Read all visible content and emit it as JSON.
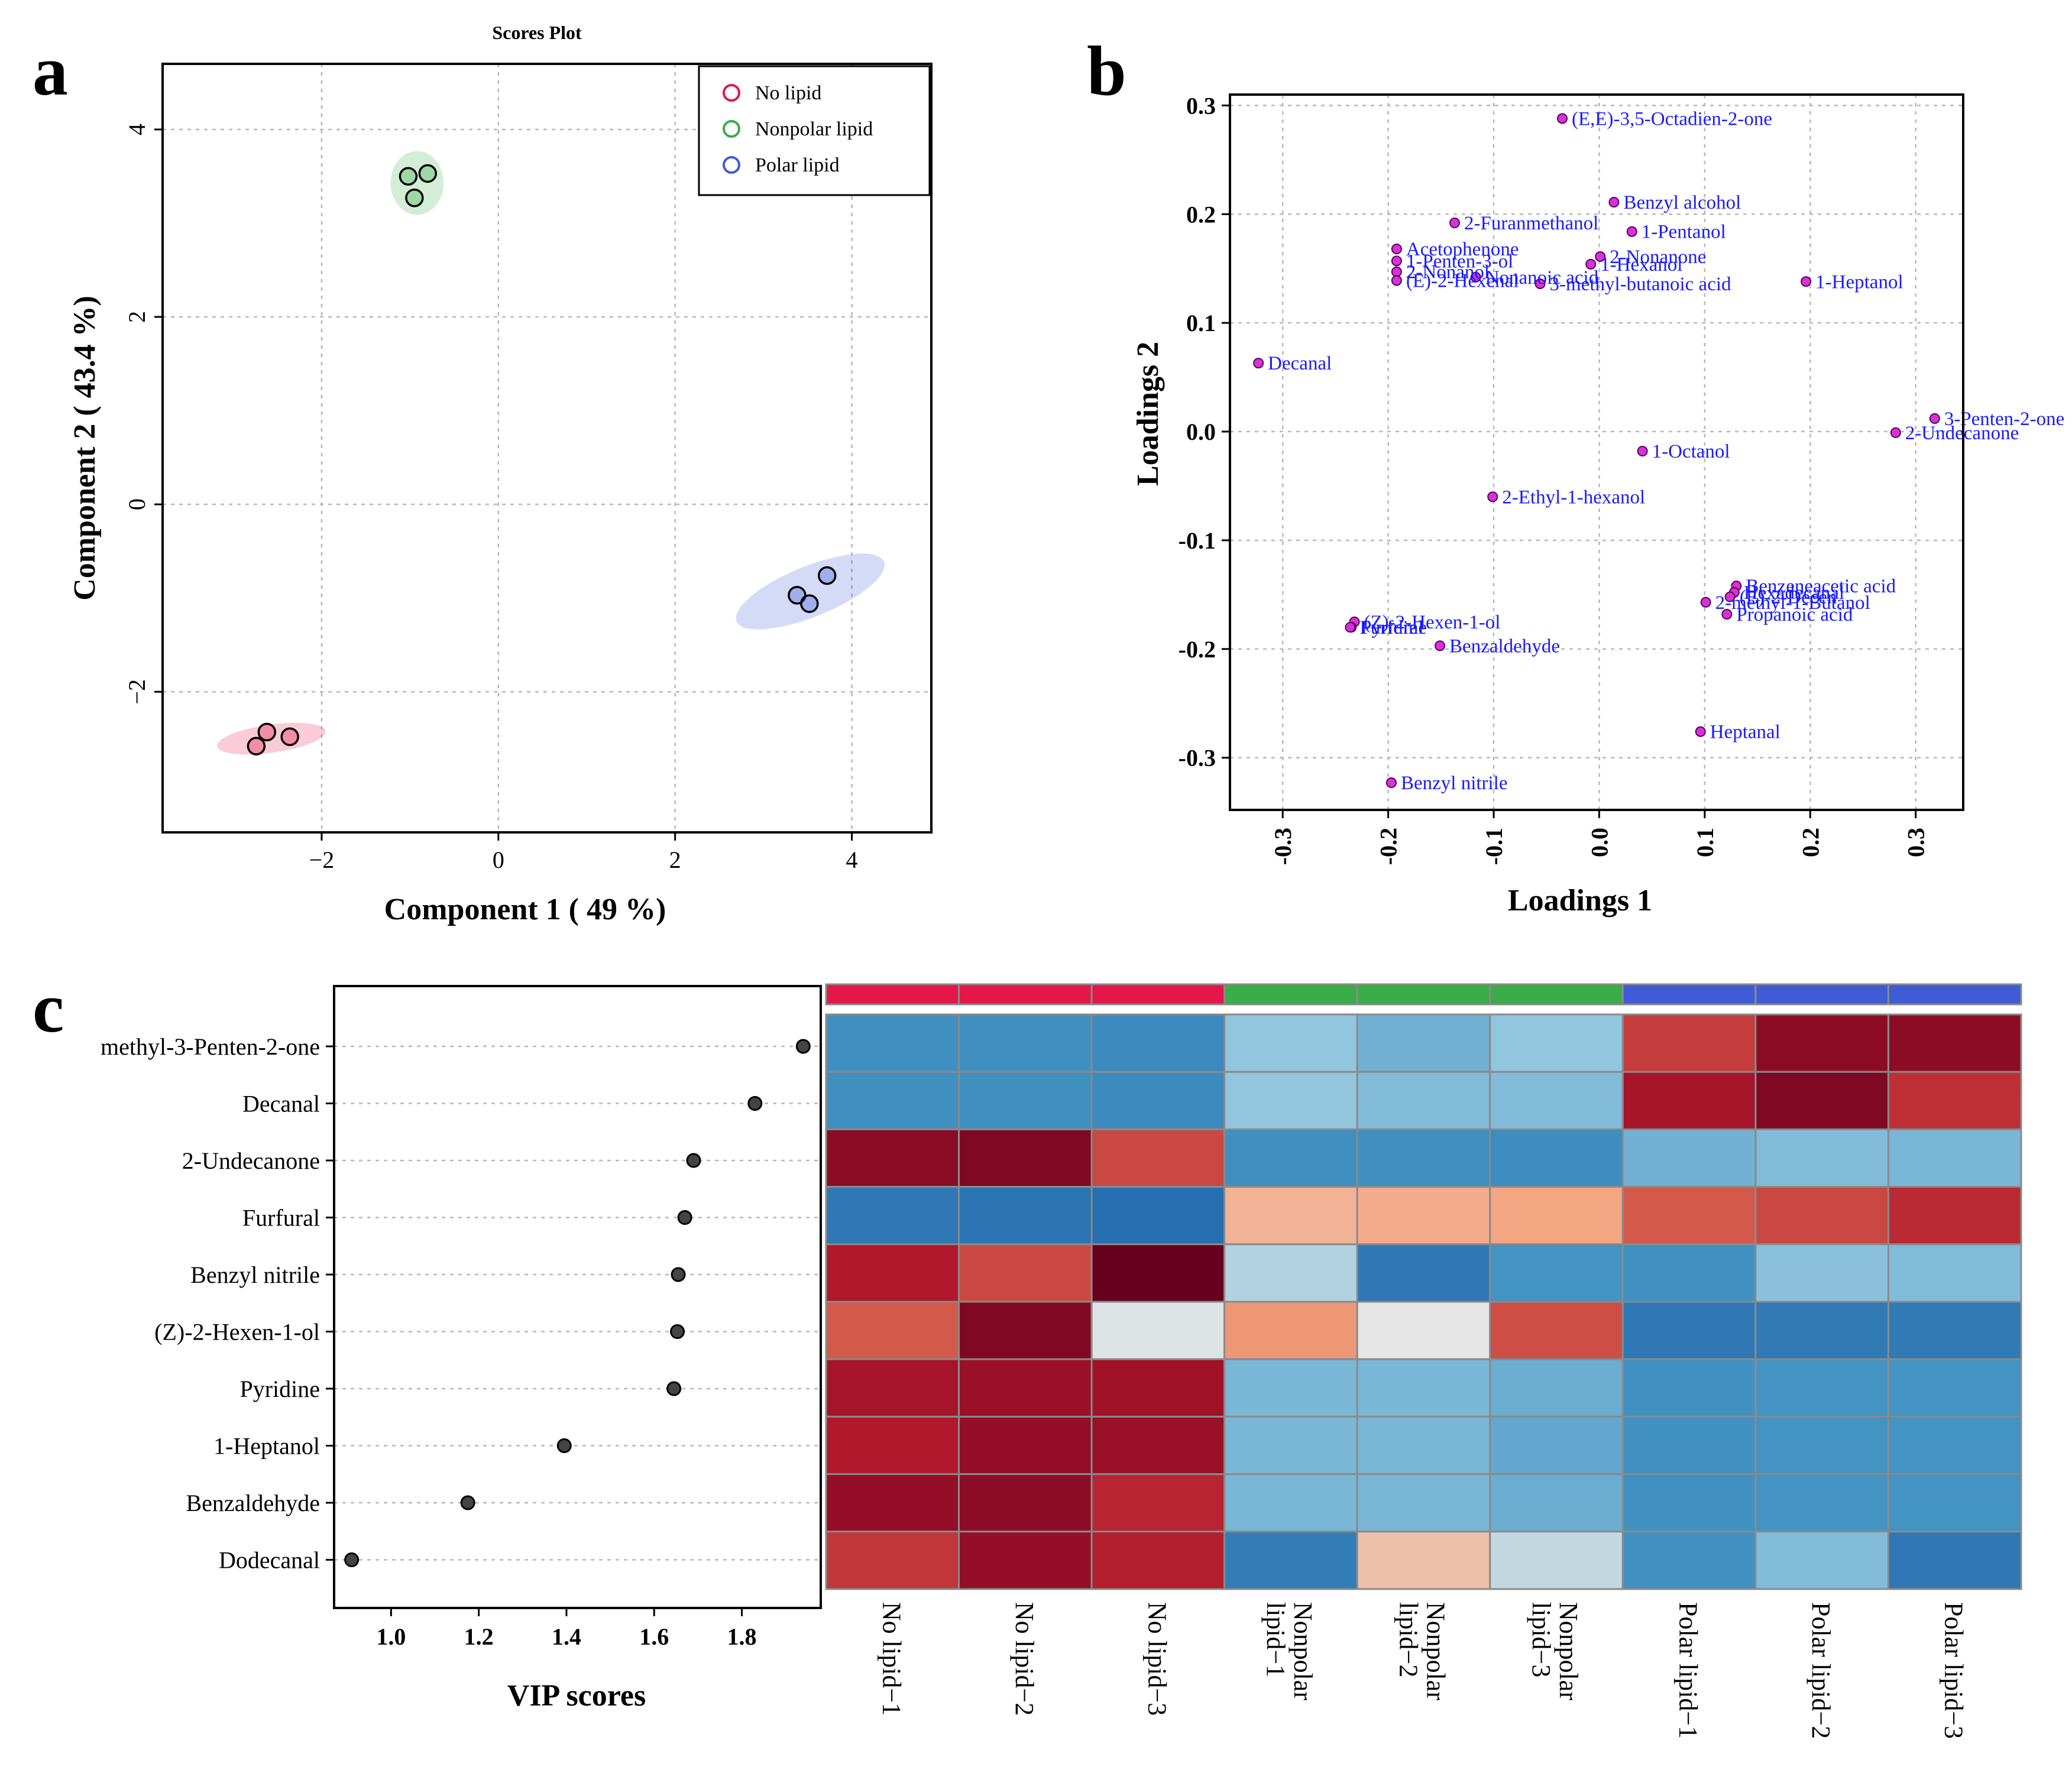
{
  "colors": {
    "no_lipid": "#e3174a",
    "nonpolar_lipid": "#3aac48",
    "polar_lipid": "#3f5bd6",
    "loading_point": "#d633d6",
    "loading_label": "#1a1aff"
  },
  "panel_a": {
    "letter": "a",
    "chart_data": {
      "type": "scatter",
      "title": "Scores Plot",
      "xlabel": "Component 1 ( 49 %)",
      "ylabel": "Component 2 ( 43.4 %)",
      "xlim": [
        -3.8,
        4.9
      ],
      "ylim": [
        -3.5,
        4.7
      ],
      "xticks": [
        -2,
        0,
        2,
        4
      ],
      "yticks": [
        -2,
        0,
        2,
        4
      ],
      "legend_position": "top-right",
      "series": [
        {
          "name": "No lipid",
          "color": "#e3174a",
          "points": [
            [
              -2.62,
              -2.43
            ],
            [
              -2.36,
              -2.48
            ],
            [
              -2.74,
              -2.58
            ]
          ],
          "ellipse": {
            "cx": -2.57,
            "cy": -2.5,
            "rx": 0.62,
            "ry": 0.15,
            "angle": 8
          }
        },
        {
          "name": "Nonpolar lipid",
          "color": "#3aac48",
          "points": [
            [
              -1.02,
              3.5
            ],
            [
              -0.8,
              3.53
            ],
            [
              -0.95,
              3.27
            ]
          ],
          "ellipse": {
            "cx": -0.92,
            "cy": 3.43,
            "rx": 0.3,
            "ry": 0.34,
            "angle": 0
          }
        },
        {
          "name": "Polar lipid",
          "color": "#3f5bd6",
          "points": [
            [
              3.38,
              -0.97
            ],
            [
              3.52,
              -1.06
            ],
            [
              3.72,
              -0.76
            ]
          ],
          "ellipse": {
            "cx": 3.53,
            "cy": -0.93,
            "rx": 0.9,
            "ry": 0.27,
            "angle": 22
          }
        }
      ]
    }
  },
  "panel_b": {
    "letter": "b",
    "chart_data": {
      "type": "scatter",
      "xlabel": "Loadings 1",
      "ylabel": "Loadings 2",
      "xlim": [
        -0.35,
        0.345
      ],
      "ylim": [
        -0.348,
        0.31
      ],
      "xticks": [
        -0.3,
        -0.2,
        -0.1,
        0.0,
        0.1,
        0.2,
        0.3
      ],
      "xtick_labels": [
        "-0.3",
        "-0.2",
        "-0.1",
        "0.0",
        "0.1",
        "0.2",
        "0.3"
      ],
      "yticks": [
        -0.3,
        -0.2,
        -0.1,
        0.0,
        0.1,
        0.2,
        0.3
      ],
      "ytick_labels": [
        "-0.3",
        "-0.2",
        "-0.1",
        "0.0",
        "0.1",
        "0.2",
        "0.3"
      ],
      "points": [
        {
          "name": "(E,E)-3,5-Octadien-2-one",
          "x": -0.035,
          "y": 0.288
        },
        {
          "name": "Benzyl alcohol",
          "x": 0.014,
          "y": 0.211
        },
        {
          "name": "2-Furanmethanol",
          "x": -0.137,
          "y": 0.192
        },
        {
          "name": "1-Pentanol",
          "x": 0.031,
          "y": 0.184
        },
        {
          "name": "2-Nonanone",
          "x": 0.001,
          "y": 0.161
        },
        {
          "name": "Acetophenone",
          "x": -0.192,
          "y": 0.168
        },
        {
          "name": "1-Penten-3-ol",
          "x": -0.192,
          "y": 0.157
        },
        {
          "name": "1-Hexanol",
          "x": -0.008,
          "y": 0.154
        },
        {
          "name": "2-Nonanol",
          "x": -0.192,
          "y": 0.147
        },
        {
          "name": "Nonanoic acid",
          "x": -0.117,
          "y": 0.142
        },
        {
          "name": "(E)-2-Hexenal",
          "x": -0.192,
          "y": 0.139
        },
        {
          "name": "3-methyl-butanoic acid",
          "x": -0.056,
          "y": 0.136
        },
        {
          "name": "1-Heptanol",
          "x": 0.196,
          "y": 0.138
        },
        {
          "name": "Decanal",
          "x": -0.323,
          "y": 0.063
        },
        {
          "name": "3-Penten-2-one",
          "x": 0.318,
          "y": 0.012
        },
        {
          "name": "2-Undecanone",
          "x": 0.281,
          "y": -0.001
        },
        {
          "name": "1-Octanol",
          "x": 0.041,
          "y": -0.018
        },
        {
          "name": "2-Ethyl-1-hexanol",
          "x": -0.101,
          "y": -0.06
        },
        {
          "name": "Benzeneacetic acid",
          "x": 0.13,
          "y": -0.142
        },
        {
          "name": "Hexadecanal",
          "x": 0.128,
          "y": -0.148
        },
        {
          "name": "(E)-2-Decen",
          "x": 0.124,
          "y": -0.152
        },
        {
          "name": "2-methyl-1-Butanol",
          "x": 0.101,
          "y": -0.157
        },
        {
          "name": "Propanoic acid",
          "x": 0.121,
          "y": -0.168
        },
        {
          "name": "(Z)-2-Hexen-1-ol",
          "x": -0.232,
          "y": -0.175
        },
        {
          "name": "Pyridine",
          "x": -0.235,
          "y": -0.18
        },
        {
          "name": "Furfural",
          "x": -0.236,
          "y": -0.18
        },
        {
          "name": "Benzaldehyde",
          "x": -0.151,
          "y": -0.197
        },
        {
          "name": "Heptanal",
          "x": 0.096,
          "y": -0.276
        },
        {
          "name": "Benzyl nitrile",
          "x": -0.197,
          "y": -0.323
        }
      ]
    }
  },
  "panel_c": {
    "letter": "c",
    "vip_chart_data": {
      "type": "scatter",
      "xlabel": "VIP scores",
      "xlim": [
        0.87,
        1.98
      ],
      "xticks": [
        1.0,
        1.2,
        1.4,
        1.6,
        1.8
      ],
      "xtick_labels": [
        "1.0",
        "1.2",
        "1.4",
        "1.6",
        "1.8"
      ],
      "categories": [
        "methyl-3-Penten-2-one",
        "Decanal",
        "2-Undecanone",
        "Furfural",
        "Benzyl nitrile",
        "(Z)-2-Hexen-1-ol",
        "Pyridine",
        "1-Heptanol",
        "Benzaldehyde",
        "Dodecanal"
      ],
      "values": [
        1.94,
        1.83,
        1.69,
        1.67,
        1.655,
        1.653,
        1.645,
        1.395,
        1.175,
        0.91
      ]
    },
    "heatmap_data": {
      "type": "heatmap",
      "columns": [
        "No lipid−1",
        "No lipid−2",
        "No lipid−3",
        "Nonpolar lipid−1",
        "Nonpolar lipid−2",
        "Nonpolar lipid−3",
        "Polar lipid−1",
        "Polar lipid−2",
        "Polar lipid−3"
      ],
      "column_groups": [
        "No lipid",
        "No lipid",
        "No lipid",
        "Nonpolar lipid",
        "Nonpolar lipid",
        "Nonpolar lipid",
        "Polar lipid",
        "Polar lipid",
        "Polar lipid"
      ],
      "rows": [
        "methyl-3-Penten-2-one",
        "Decanal",
        "2-Undecanone",
        "Furfural",
        "Benzyl nitrile",
        "(Z)-2-Hexen-1-ol",
        "Pyridine",
        "1-Heptanol",
        "Benzaldehyde",
        "Dodecanal"
      ],
      "scale_note": "relative z-score, -2 (blue) to +2 (dark red)",
      "values": [
        [
          -1.1,
          -1.1,
          -1.2,
          -0.5,
          -0.7,
          -0.5,
          1.3,
          1.9,
          1.9
        ],
        [
          -1.1,
          -1.1,
          -1.2,
          -0.5,
          -0.6,
          -0.6,
          1.7,
          2.0,
          1.4
        ],
        [
          1.9,
          2.0,
          1.2,
          -1.1,
          -1.1,
          -1.15,
          -0.7,
          -0.6,
          -0.65
        ],
        [
          -1.6,
          -1.7,
          -1.8,
          0.4,
          0.45,
          0.5,
          1.05,
          1.2,
          1.45
        ],
        [
          1.6,
          1.2,
          2.2,
          -0.3,
          -1.6,
          -1.0,
          -1.05,
          -0.55,
          -0.6
        ],
        [
          1.05,
          2.0,
          -0.05,
          0.6,
          0.0,
          1.15,
          -1.6,
          -1.55,
          -1.55
        ],
        [
          1.7,
          1.8,
          1.75,
          -0.65,
          -0.65,
          -0.75,
          -1.05,
          -1.0,
          -1.0
        ],
        [
          1.6,
          1.85,
          1.8,
          -0.65,
          -0.65,
          -0.8,
          -1.05,
          -1.0,
          -1.0
        ],
        [
          1.85,
          1.9,
          1.5,
          -0.65,
          -0.65,
          -0.75,
          -1.05,
          -1.0,
          -1.0
        ],
        [
          1.35,
          1.85,
          1.55,
          -1.5,
          0.3,
          -0.2,
          -1.05,
          -0.6,
          -1.6
        ]
      ]
    }
  }
}
